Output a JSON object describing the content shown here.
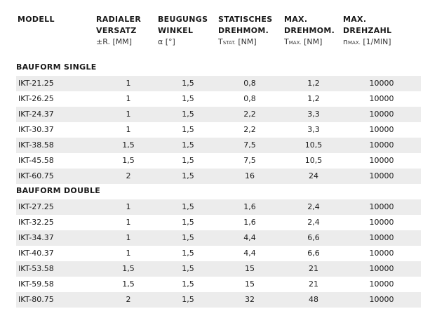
{
  "header": {
    "modell": "MODELL",
    "radial_l1": "RADIALER",
    "radial_l2": "VERSATZ",
    "radial_sym": "±R.",
    "radial_unit": " [MM]",
    "beug_l1": "BEUGUNGS",
    "beug_l2": "WINKEL",
    "beug_sym": "α",
    "beug_unit": " [°]",
    "stat_l1": "STATISCHES",
    "stat_l2": "DREHMOM.",
    "stat_sym": "T",
    "stat_sub": "STAT.",
    "stat_unit": " [NM]",
    "max_l1": "MAX.",
    "max_l2": "DREHMOM.",
    "max_sym": "T",
    "max_sub": "MAX.",
    "max_unit": " [NM]",
    "rpm_l1": "MAX.",
    "rpm_l2": "DREHZAHL",
    "rpm_sym": "n",
    "rpm_sub": "MAX.",
    "rpm_unit": " [1/MIN]"
  },
  "sections": [
    {
      "title": "BAUFORM SINGLE",
      "rows": [
        [
          "IKT-21.25",
          "1",
          "1,5",
          "0,8",
          "1,2",
          "10000"
        ],
        [
          "IKT-26.25",
          "1",
          "1,5",
          "0,8",
          "1,2",
          "10000"
        ],
        [
          "IKT-24.37",
          "1",
          "1,5",
          "2,2",
          "3,3",
          "10000"
        ],
        [
          "IKT-30.37",
          "1",
          "1,5",
          "2,2",
          "3,3",
          "10000"
        ],
        [
          "IKT-38.58",
          "1,5",
          "1,5",
          "7,5",
          "10,5",
          "10000"
        ],
        [
          "IKT-45.58",
          "1,5",
          "1,5",
          "7,5",
          "10,5",
          "10000"
        ],
        [
          "IKT-60.75",
          "2",
          "1,5",
          "16",
          "24",
          "10000"
        ]
      ]
    },
    {
      "title": "BAUFORM DOUBLE",
      "rows": [
        [
          "IKT-27.25",
          "1",
          "1,5",
          "1,6",
          "2,4",
          "10000"
        ],
        [
          "IKT-32.25",
          "1",
          "1,5",
          "1,6",
          "2,4",
          "10000"
        ],
        [
          "IKT-34.37",
          "1",
          "1,5",
          "4,4",
          "6,6",
          "10000"
        ],
        [
          "IKT-40.37",
          "1",
          "1,5",
          "4,4",
          "6,6",
          "10000"
        ],
        [
          "IKT-53.58",
          "1,5",
          "1,5",
          "15",
          "21",
          "10000"
        ],
        [
          "IKT-59.58",
          "1,5",
          "1,5",
          "15",
          "21",
          "10000"
        ],
        [
          "IKT-80.75",
          "2",
          "1,5",
          "32",
          "48",
          "10000"
        ]
      ]
    }
  ],
  "colors": {
    "row_shade": "#ececec",
    "text": "#1a1a1a"
  }
}
